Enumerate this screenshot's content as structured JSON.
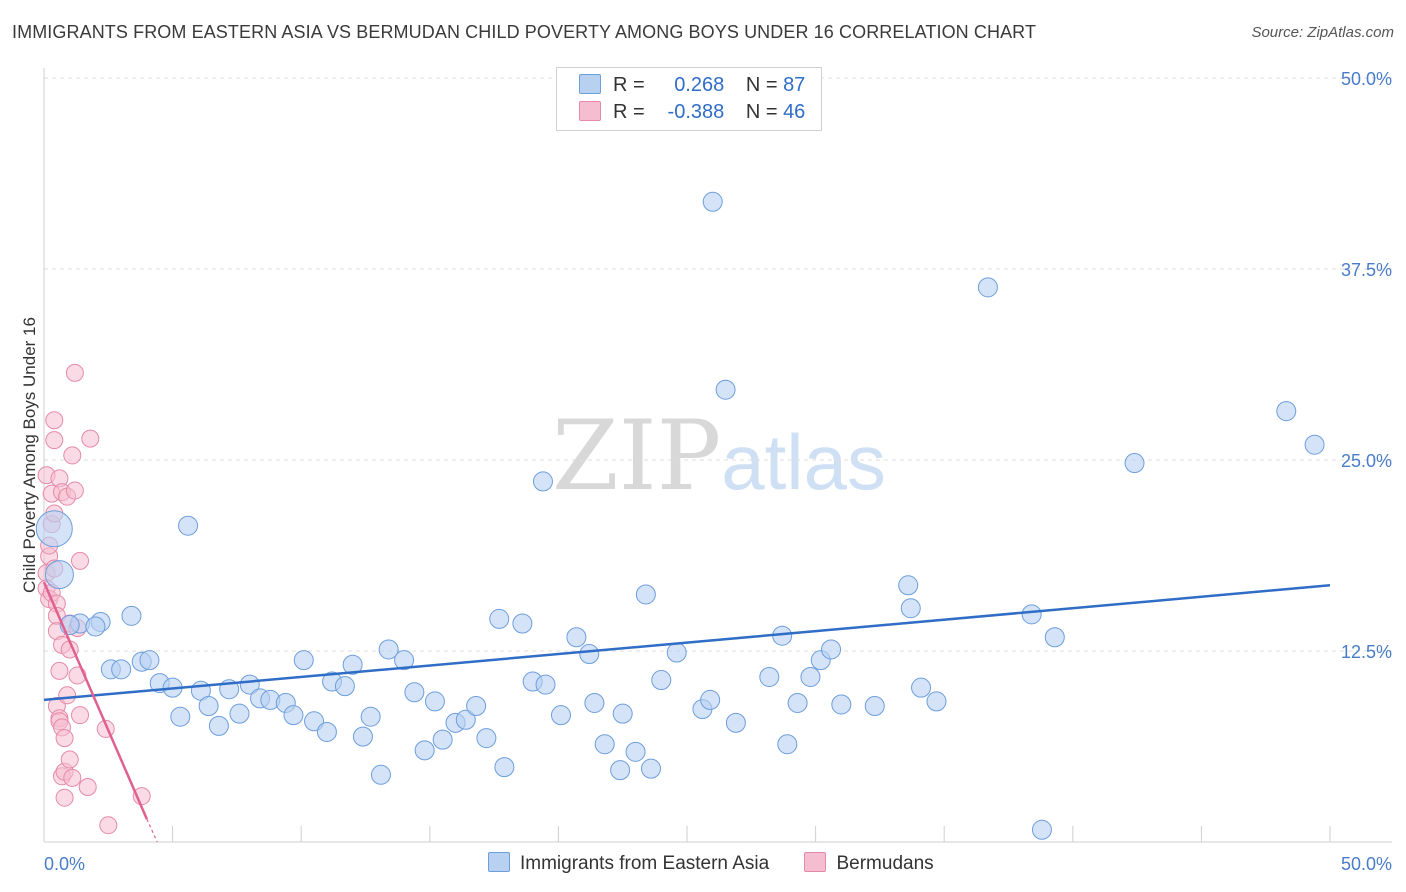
{
  "title": "IMMIGRANTS FROM EASTERN ASIA VS BERMUDAN CHILD POVERTY AMONG BOYS UNDER 16 CORRELATION CHART",
  "source": "Source: ZipAtlas.com",
  "watermark": {
    "zip": "ZIP",
    "atlas": "atlas"
  },
  "legend": {
    "rows": [
      {
        "r_label": "R =",
        "r_value": "0.268",
        "n_label": "N =",
        "n_value": "87"
      },
      {
        "r_label": "R =",
        "r_value": "-0.388",
        "n_label": "N =",
        "n_value": "46"
      }
    ]
  },
  "colors": {
    "blue_fill": "#b8d1f1",
    "blue_stroke": "#6d9edd",
    "blue_line": "#2f6dc6",
    "pink_fill": "#f5bdd0",
    "pink_stroke": "#e68aa8",
    "pink_line": "#e0608f",
    "grid": "#dcdcdc",
    "tick_text": "#4a7cc9"
  },
  "chart_data": {
    "type": "scatter",
    "title": "IMMIGRANTS FROM EASTERN ASIA VS BERMUDAN CHILD POVERTY AMONG BOYS UNDER 16 CORRELATION CHART",
    "ylabel": "Child Poverty Among Boys Under 16",
    "xlim": [
      0,
      50
    ],
    "ylim": [
      0,
      50
    ],
    "x_tick_labels": [
      "0.0%",
      "50.0%"
    ],
    "y_ticks": [
      12.5,
      25.0,
      37.5,
      50.0
    ],
    "y_tick_labels": [
      "12.5%",
      "25.0%",
      "37.5%",
      "50.0%"
    ],
    "grid": true,
    "legend_position": "bottom",
    "series": [
      {
        "name": "Immigrants from Eastern Asia",
        "color": "#6d9edd",
        "trend": {
          "x": [
            0.0,
            50.0
          ],
          "y": [
            9.3,
            16.8
          ]
        },
        "points": [
          [
            0.4,
            20.5
          ],
          [
            0.6,
            17.5
          ],
          [
            1.4,
            14.3
          ],
          [
            2.2,
            14.4
          ],
          [
            1.0,
            14.2
          ],
          [
            2.0,
            14.1
          ],
          [
            3.4,
            14.8
          ],
          [
            2.6,
            11.3
          ],
          [
            3.0,
            11.3
          ],
          [
            3.8,
            11.8
          ],
          [
            4.1,
            11.9
          ],
          [
            4.5,
            10.4
          ],
          [
            5.0,
            10.1
          ],
          [
            5.3,
            8.2
          ],
          [
            5.6,
            20.7
          ],
          [
            6.1,
            9.9
          ],
          [
            6.4,
            8.9
          ],
          [
            6.8,
            7.6
          ],
          [
            7.2,
            10.0
          ],
          [
            7.6,
            8.4
          ],
          [
            8.0,
            10.3
          ],
          [
            8.4,
            9.4
          ],
          [
            8.8,
            9.3
          ],
          [
            9.4,
            9.1
          ],
          [
            9.7,
            8.3
          ],
          [
            10.1,
            11.9
          ],
          [
            10.5,
            7.9
          ],
          [
            11.0,
            7.2
          ],
          [
            11.2,
            10.5
          ],
          [
            11.7,
            10.2
          ],
          [
            12.0,
            11.6
          ],
          [
            12.4,
            6.9
          ],
          [
            12.7,
            8.2
          ],
          [
            13.1,
            4.4
          ],
          [
            13.4,
            12.6
          ],
          [
            14.0,
            11.9
          ],
          [
            14.4,
            9.8
          ],
          [
            14.8,
            6.0
          ],
          [
            15.2,
            9.2
          ],
          [
            15.5,
            6.7
          ],
          [
            16.0,
            7.8
          ],
          [
            16.4,
            8.0
          ],
          [
            16.8,
            8.9
          ],
          [
            17.2,
            6.8
          ],
          [
            17.7,
            14.6
          ],
          [
            17.9,
            4.9
          ],
          [
            18.6,
            14.3
          ],
          [
            19.0,
            10.5
          ],
          [
            19.5,
            10.3
          ],
          [
            19.4,
            23.6
          ],
          [
            20.1,
            8.3
          ],
          [
            20.7,
            13.4
          ],
          [
            21.2,
            12.3
          ],
          [
            21.4,
            9.1
          ],
          [
            21.8,
            6.4
          ],
          [
            22.4,
            4.7
          ],
          [
            22.5,
            8.4
          ],
          [
            23.0,
            5.9
          ],
          [
            23.4,
            16.2
          ],
          [
            23.6,
            4.8
          ],
          [
            24.0,
            10.6
          ],
          [
            24.6,
            12.4
          ],
          [
            25.6,
            8.7
          ],
          [
            25.9,
            9.3
          ],
          [
            26.0,
            41.9
          ],
          [
            26.5,
            29.6
          ],
          [
            26.9,
            7.8
          ],
          [
            28.2,
            10.8
          ],
          [
            28.7,
            13.5
          ],
          [
            28.9,
            6.4
          ],
          [
            29.3,
            9.1
          ],
          [
            29.8,
            10.8
          ],
          [
            30.2,
            11.9
          ],
          [
            30.6,
            12.6
          ],
          [
            31.0,
            9.0
          ],
          [
            32.3,
            8.9
          ],
          [
            33.6,
            16.8
          ],
          [
            33.7,
            15.3
          ],
          [
            34.1,
            10.1
          ],
          [
            34.7,
            9.2
          ],
          [
            36.7,
            36.3
          ],
          [
            38.4,
            14.9
          ],
          [
            38.8,
            0.8
          ],
          [
            39.3,
            13.4
          ],
          [
            42.4,
            24.8
          ],
          [
            48.3,
            28.2
          ],
          [
            49.4,
            26.0
          ]
        ]
      },
      {
        "name": "Bermudans",
        "color": "#e68aa8",
        "trend": {
          "x": [
            0.0,
            4.0
          ],
          "y": [
            17.0,
            1.5
          ]
        },
        "points": [
          [
            0.1,
            24.0
          ],
          [
            0.1,
            17.6
          ],
          [
            0.1,
            16.6
          ],
          [
            0.2,
            18.7
          ],
          [
            0.2,
            15.9
          ],
          [
            0.2,
            19.4
          ],
          [
            0.3,
            22.8
          ],
          [
            0.3,
            20.8
          ],
          [
            0.3,
            16.3
          ],
          [
            0.4,
            27.6
          ],
          [
            0.4,
            26.3
          ],
          [
            0.4,
            21.5
          ],
          [
            0.4,
            17.9
          ],
          [
            0.5,
            15.6
          ],
          [
            0.5,
            14.8
          ],
          [
            0.5,
            13.8
          ],
          [
            0.5,
            8.9
          ],
          [
            0.6,
            23.8
          ],
          [
            0.6,
            11.2
          ],
          [
            0.6,
            8.1
          ],
          [
            0.6,
            7.9
          ],
          [
            0.7,
            22.9
          ],
          [
            0.7,
            12.9
          ],
          [
            0.7,
            7.5
          ],
          [
            0.7,
            4.3
          ],
          [
            0.8,
            6.8
          ],
          [
            0.8,
            4.6
          ],
          [
            0.8,
            2.9
          ],
          [
            0.9,
            22.6
          ],
          [
            0.9,
            9.6
          ],
          [
            1.0,
            14.3
          ],
          [
            1.0,
            12.6
          ],
          [
            1.0,
            5.4
          ],
          [
            1.1,
            25.3
          ],
          [
            1.1,
            4.2
          ],
          [
            1.2,
            30.7
          ],
          [
            1.2,
            23.0
          ],
          [
            1.3,
            10.9
          ],
          [
            1.3,
            14.0
          ],
          [
            1.4,
            18.4
          ],
          [
            1.4,
            8.3
          ],
          [
            1.7,
            3.6
          ],
          [
            1.8,
            26.4
          ],
          [
            2.4,
            7.4
          ],
          [
            2.5,
            1.1
          ],
          [
            3.8,
            3.0
          ]
        ]
      }
    ]
  },
  "bottom_legend": [
    "Immigrants from Eastern Asia",
    "Bermudans"
  ]
}
